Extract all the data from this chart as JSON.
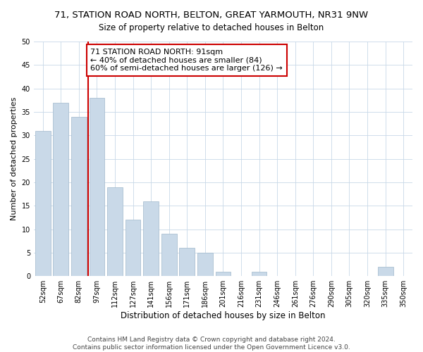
{
  "title": "71, STATION ROAD NORTH, BELTON, GREAT YARMOUTH, NR31 9NW",
  "subtitle": "Size of property relative to detached houses in Belton",
  "xlabel": "Distribution of detached houses by size in Belton",
  "ylabel": "Number of detached properties",
  "bar_labels": [
    "52sqm",
    "67sqm",
    "82sqm",
    "97sqm",
    "112sqm",
    "127sqm",
    "141sqm",
    "156sqm",
    "171sqm",
    "186sqm",
    "201sqm",
    "216sqm",
    "231sqm",
    "246sqm",
    "261sqm",
    "276sqm",
    "290sqm",
    "305sqm",
    "320sqm",
    "335sqm",
    "350sqm"
  ],
  "bar_values": [
    31,
    37,
    34,
    38,
    19,
    12,
    16,
    9,
    6,
    5,
    1,
    0,
    1,
    0,
    0,
    0,
    0,
    0,
    0,
    2,
    0
  ],
  "bar_color": "#c9d9e8",
  "bar_edge_color": "#a0b8cc",
  "vline_color": "#cc0000",
  "annotation_line1": "71 STATION ROAD NORTH: 91sqm",
  "annotation_line2": "← 40% of detached houses are smaller (84)",
  "annotation_line3": "60% of semi-detached houses are larger (126) →",
  "annotation_box_color": "#ffffff",
  "annotation_box_edge_color": "#cc0000",
  "ylim": [
    0,
    50
  ],
  "yticks": [
    0,
    5,
    10,
    15,
    20,
    25,
    30,
    35,
    40,
    45,
    50
  ],
  "footer_line1": "Contains HM Land Registry data © Crown copyright and database right 2024.",
  "footer_line2": "Contains public sector information licensed under the Open Government Licence v3.0.",
  "background_color": "#ffffff",
  "grid_color": "#c8d8e8",
  "title_fontsize": 9.5,
  "subtitle_fontsize": 8.5,
  "xlabel_fontsize": 8.5,
  "ylabel_fontsize": 8,
  "tick_fontsize": 7,
  "annotation_fontsize": 8,
  "footer_fontsize": 6.5
}
